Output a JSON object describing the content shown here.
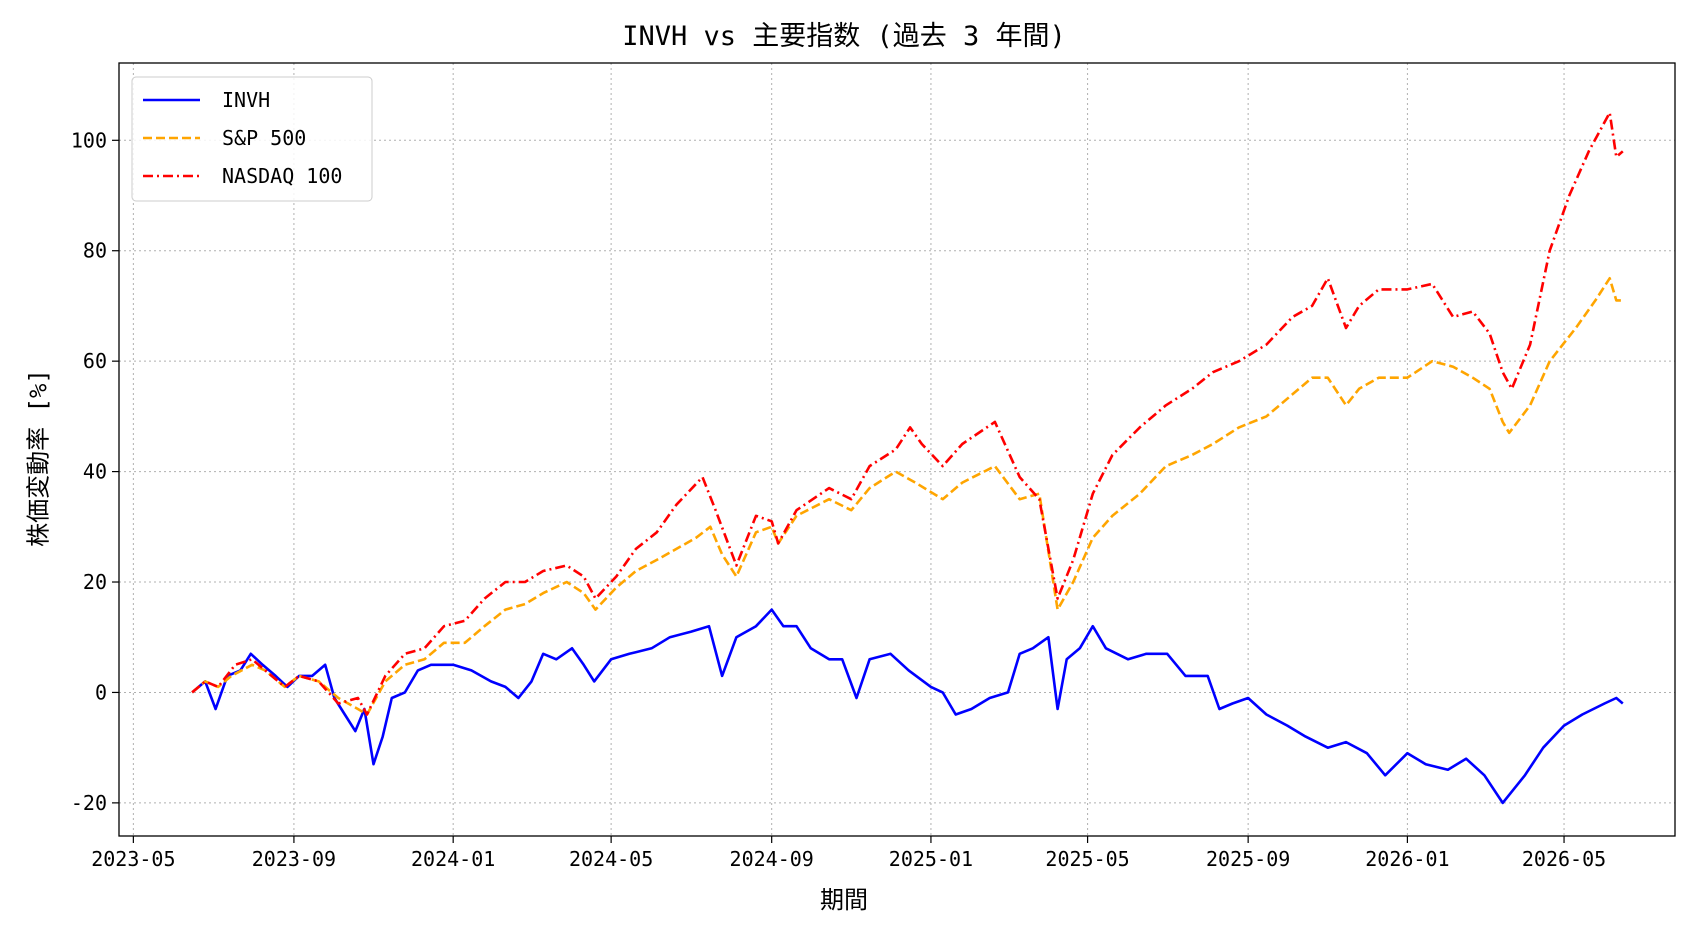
{
  "chart_data": {
    "type": "line",
    "title": "INVH vs 主要指数 (過去 3 年間)",
    "xlabel": "期間",
    "ylabel": "株価変動率 [%]",
    "xlim": [
      "2023-04-20",
      "2026-07-25"
    ],
    "ylim": [
      -26,
      114
    ],
    "x_ticks": [
      "2023-05",
      "2023-09",
      "2024-01",
      "2024-05",
      "2024-09",
      "2025-01",
      "2025-05",
      "2025-09",
      "2026-01",
      "2026-05"
    ],
    "x_tick_dates": [
      "2023-05-01",
      "2023-09-01",
      "2024-01-01",
      "2024-05-01",
      "2024-09-01",
      "2025-01-01",
      "2025-05-01",
      "2025-09-01",
      "2026-01-01",
      "2026-05-01"
    ],
    "y_ticks": [
      -20,
      0,
      20,
      40,
      60,
      80,
      100
    ],
    "grid": true,
    "legend_position": "upper-left",
    "series": [
      {
        "name": "INVH",
        "color": "#0000ff",
        "style": "solid",
        "points": [
          [
            "2023-06-15",
            0
          ],
          [
            "2023-06-25",
            2
          ],
          [
            "2023-07-03",
            -3
          ],
          [
            "2023-07-12",
            3
          ],
          [
            "2023-07-22",
            4
          ],
          [
            "2023-07-30",
            7
          ],
          [
            "2023-08-08",
            5
          ],
          [
            "2023-08-18",
            3
          ],
          [
            "2023-08-27",
            1
          ],
          [
            "2023-09-05",
            3
          ],
          [
            "2023-09-15",
            3
          ],
          [
            "2023-09-25",
            5
          ],
          [
            "2023-10-02",
            -1
          ],
          [
            "2023-10-10",
            -4
          ],
          [
            "2023-10-18",
            -7
          ],
          [
            "2023-10-25",
            -3
          ],
          [
            "2023-11-01",
            -13
          ],
          [
            "2023-11-08",
            -8
          ],
          [
            "2023-11-15",
            -1
          ],
          [
            "2023-11-25",
            0
          ],
          [
            "2023-12-05",
            4
          ],
          [
            "2023-12-15",
            5
          ],
          [
            "2024-01-01",
            5
          ],
          [
            "2024-01-15",
            4
          ],
          [
            "2024-01-30",
            2
          ],
          [
            "2024-02-10",
            1
          ],
          [
            "2024-02-20",
            -1
          ],
          [
            "2024-03-01",
            2
          ],
          [
            "2024-03-10",
            7
          ],
          [
            "2024-03-20",
            6
          ],
          [
            "2024-04-01",
            8
          ],
          [
            "2024-04-10",
            5
          ],
          [
            "2024-04-18",
            2
          ],
          [
            "2024-05-01",
            6
          ],
          [
            "2024-05-15",
            7
          ],
          [
            "2024-06-01",
            8
          ],
          [
            "2024-06-15",
            10
          ],
          [
            "2024-07-01",
            11
          ],
          [
            "2024-07-15",
            12
          ],
          [
            "2024-07-25",
            3
          ],
          [
            "2024-08-05",
            10
          ],
          [
            "2024-08-20",
            12
          ],
          [
            "2024-09-01",
            15
          ],
          [
            "2024-09-10",
            12
          ],
          [
            "2024-09-20",
            12
          ],
          [
            "2024-10-01",
            8
          ],
          [
            "2024-10-15",
            6
          ],
          [
            "2024-10-25",
            6
          ],
          [
            "2024-11-05",
            -1
          ],
          [
            "2024-11-15",
            6
          ],
          [
            "2024-12-01",
            7
          ],
          [
            "2024-12-15",
            4
          ],
          [
            "2025-01-01",
            1
          ],
          [
            "2025-01-10",
            0
          ],
          [
            "2025-01-20",
            -4
          ],
          [
            "2025-02-01",
            -3
          ],
          [
            "2025-02-15",
            -1
          ],
          [
            "2025-03-01",
            0
          ],
          [
            "2025-03-10",
            7
          ],
          [
            "2025-03-20",
            8
          ],
          [
            "2025-04-01",
            10
          ],
          [
            "2025-04-08",
            -3
          ],
          [
            "2025-04-15",
            6
          ],
          [
            "2025-04-25",
            8
          ],
          [
            "2025-05-05",
            12
          ],
          [
            "2025-05-15",
            8
          ],
          [
            "2025-06-01",
            6
          ],
          [
            "2025-06-15",
            7
          ],
          [
            "2025-07-01",
            7
          ],
          [
            "2025-07-15",
            3
          ],
          [
            "2025-08-01",
            3
          ],
          [
            "2025-08-10",
            -3
          ],
          [
            "2025-08-20",
            -2
          ],
          [
            "2025-09-01",
            -1
          ],
          [
            "2025-09-15",
            -4
          ],
          [
            "2025-10-01",
            -6
          ],
          [
            "2025-10-15",
            -8
          ],
          [
            "2025-11-01",
            -10
          ],
          [
            "2025-11-15",
            -9
          ],
          [
            "2025-12-01",
            -11
          ],
          [
            "2025-12-15",
            -15
          ],
          [
            "2026-01-01",
            -11
          ],
          [
            "2026-01-15",
            -13
          ],
          [
            "2026-02-01",
            -14
          ],
          [
            "2026-02-15",
            -12
          ],
          [
            "2026-03-01",
            -15
          ],
          [
            "2026-03-15",
            -20
          ],
          [
            "2026-04-01",
            -15
          ],
          [
            "2026-04-15",
            -10
          ],
          [
            "2026-05-01",
            -6
          ],
          [
            "2026-05-15",
            -4
          ],
          [
            "2026-06-01",
            -2
          ],
          [
            "2026-06-10",
            -1
          ],
          [
            "2026-06-15",
            -2
          ]
        ]
      },
      {
        "name": "S&P 500",
        "color": "#ffa500",
        "style": "dashed",
        "points": [
          [
            "2023-06-15",
            0
          ],
          [
            "2023-06-25",
            2
          ],
          [
            "2023-07-05",
            1
          ],
          [
            "2023-07-15",
            3
          ],
          [
            "2023-07-31",
            5
          ],
          [
            "2023-08-10",
            4
          ],
          [
            "2023-08-25",
            1
          ],
          [
            "2023-09-05",
            3
          ],
          [
            "2023-09-20",
            2
          ],
          [
            "2023-10-05",
            -1
          ],
          [
            "2023-10-20",
            -3
          ],
          [
            "2023-10-27",
            -4
          ],
          [
            "2023-11-10",
            2
          ],
          [
            "2023-11-25",
            5
          ],
          [
            "2023-12-10",
            6
          ],
          [
            "2023-12-25",
            9
          ],
          [
            "2024-01-10",
            9
          ],
          [
            "2024-01-25",
            12
          ],
          [
            "2024-02-10",
            15
          ],
          [
            "2024-02-25",
            16
          ],
          [
            "2024-03-10",
            18
          ],
          [
            "2024-03-28",
            20
          ],
          [
            "2024-04-10",
            18
          ],
          [
            "2024-04-19",
            15
          ],
          [
            "2024-05-05",
            19
          ],
          [
            "2024-05-20",
            22
          ],
          [
            "2024-06-05",
            24
          ],
          [
            "2024-06-20",
            26
          ],
          [
            "2024-07-05",
            28
          ],
          [
            "2024-07-16",
            30
          ],
          [
            "2024-07-25",
            25
          ],
          [
            "2024-08-05",
            21
          ],
          [
            "2024-08-20",
            29
          ],
          [
            "2024-09-01",
            30
          ],
          [
            "2024-09-06",
            27
          ],
          [
            "2024-09-20",
            32
          ],
          [
            "2024-10-15",
            35
          ],
          [
            "2024-11-01",
            33
          ],
          [
            "2024-11-15",
            37
          ],
          [
            "2024-12-05",
            40
          ],
          [
            "2024-12-20",
            38
          ],
          [
            "2025-01-10",
            35
          ],
          [
            "2025-01-25",
            38
          ],
          [
            "2025-02-19",
            41
          ],
          [
            "2025-03-10",
            35
          ],
          [
            "2025-03-25",
            36
          ],
          [
            "2025-04-08",
            15
          ],
          [
            "2025-04-20",
            20
          ],
          [
            "2025-05-05",
            28
          ],
          [
            "2025-05-20",
            32
          ],
          [
            "2025-06-10",
            36
          ],
          [
            "2025-06-30",
            41
          ],
          [
            "2025-07-20",
            43
          ],
          [
            "2025-08-05",
            45
          ],
          [
            "2025-08-25",
            48
          ],
          [
            "2025-09-15",
            50
          ],
          [
            "2025-10-05",
            54
          ],
          [
            "2025-10-20",
            57
          ],
          [
            "2025-11-01",
            57
          ],
          [
            "2025-11-15",
            52
          ],
          [
            "2025-11-25",
            55
          ],
          [
            "2025-12-10",
            57
          ],
          [
            "2026-01-01",
            57
          ],
          [
            "2026-01-20",
            60
          ],
          [
            "2026-02-05",
            59
          ],
          [
            "2026-02-20",
            57
          ],
          [
            "2026-03-05",
            55
          ],
          [
            "2026-03-15",
            49
          ],
          [
            "2026-03-20",
            47
          ],
          [
            "2026-04-05",
            52
          ],
          [
            "2026-04-20",
            60
          ],
          [
            "2026-05-10",
            66
          ],
          [
            "2026-05-25",
            71
          ],
          [
            "2026-06-05",
            75
          ],
          [
            "2026-06-10",
            71
          ],
          [
            "2026-06-15",
            71
          ]
        ]
      },
      {
        "name": "NASDAQ 100",
        "color": "#ff0000",
        "style": "dashdot",
        "points": [
          [
            "2023-06-15",
            0
          ],
          [
            "2023-06-25",
            2
          ],
          [
            "2023-07-05",
            1
          ],
          [
            "2023-07-18",
            5
          ],
          [
            "2023-07-31",
            6
          ],
          [
            "2023-08-10",
            4
          ],
          [
            "2023-08-25",
            1
          ],
          [
            "2023-09-05",
            3
          ],
          [
            "2023-09-20",
            2
          ],
          [
            "2023-10-05",
            -2
          ],
          [
            "2023-10-20",
            -1
          ],
          [
            "2023-10-27",
            -4
          ],
          [
            "2023-11-10",
            3
          ],
          [
            "2023-11-25",
            7
          ],
          [
            "2023-12-10",
            8
          ],
          [
            "2023-12-25",
            12
          ],
          [
            "2024-01-10",
            13
          ],
          [
            "2024-01-25",
            17
          ],
          [
            "2024-02-10",
            20
          ],
          [
            "2024-02-25",
            20
          ],
          [
            "2024-03-10",
            22
          ],
          [
            "2024-03-28",
            23
          ],
          [
            "2024-04-10",
            21
          ],
          [
            "2024-04-19",
            17
          ],
          [
            "2024-05-05",
            21
          ],
          [
            "2024-05-20",
            26
          ],
          [
            "2024-06-05",
            29
          ],
          [
            "2024-06-20",
            34
          ],
          [
            "2024-07-10",
            39
          ],
          [
            "2024-07-20",
            33
          ],
          [
            "2024-08-05",
            23
          ],
          [
            "2024-08-20",
            32
          ],
          [
            "2024-09-01",
            31
          ],
          [
            "2024-09-06",
            27
          ],
          [
            "2024-09-20",
            33
          ],
          [
            "2024-10-15",
            37
          ],
          [
            "2024-11-01",
            35
          ],
          [
            "2024-11-15",
            41
          ],
          [
            "2024-12-05",
            44
          ],
          [
            "2024-12-16",
            48
          ],
          [
            "2024-12-25",
            45
          ],
          [
            "2025-01-10",
            41
          ],
          [
            "2025-01-25",
            45
          ],
          [
            "2025-02-19",
            49
          ],
          [
            "2025-03-10",
            39
          ],
          [
            "2025-03-25",
            35
          ],
          [
            "2025-04-08",
            17
          ],
          [
            "2025-04-20",
            24
          ],
          [
            "2025-05-05",
            36
          ],
          [
            "2025-05-20",
            43
          ],
          [
            "2025-06-10",
            48
          ],
          [
            "2025-06-30",
            52
          ],
          [
            "2025-07-20",
            55
          ],
          [
            "2025-08-05",
            58
          ],
          [
            "2025-08-25",
            60
          ],
          [
            "2025-09-15",
            63
          ],
          [
            "2025-10-05",
            68
          ],
          [
            "2025-10-20",
            70
          ],
          [
            "2025-11-01",
            75
          ],
          [
            "2025-11-15",
            66
          ],
          [
            "2025-11-25",
            70
          ],
          [
            "2025-12-10",
            73
          ],
          [
            "2026-01-01",
            73
          ],
          [
            "2026-01-20",
            74
          ],
          [
            "2026-02-05",
            68
          ],
          [
            "2026-02-20",
            69
          ],
          [
            "2026-03-05",
            65
          ],
          [
            "2026-03-15",
            58
          ],
          [
            "2026-03-22",
            55
          ],
          [
            "2026-04-05",
            63
          ],
          [
            "2026-04-20",
            80
          ],
          [
            "2026-05-05",
            90
          ],
          [
            "2026-05-20",
            98
          ],
          [
            "2026-06-05",
            105
          ],
          [
            "2026-06-10",
            97
          ],
          [
            "2026-06-15",
            98
          ]
        ]
      }
    ]
  }
}
